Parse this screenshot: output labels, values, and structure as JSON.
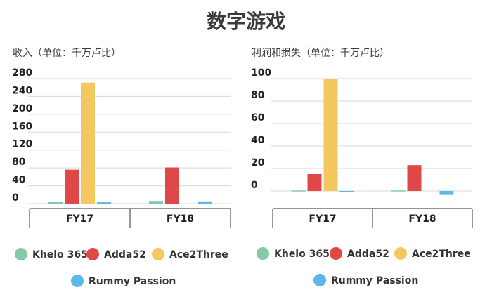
{
  "title": "数字游戏",
  "colors": {
    "Khelo 365": "#86c9a8",
    "Adda52": "#e04848",
    "Ace2Three": "#f5c760",
    "Rummy Passion": "#5bb8e8"
  },
  "chart_data": [
    {
      "type": "bar",
      "title": "收入（单位：千万卢比）",
      "categories": [
        "FY17",
        "FY18"
      ],
      "yticks": [
        0,
        40,
        80,
        120,
        160,
        200,
        240,
        280
      ],
      "ylim": [
        -6,
        280
      ],
      "grid": true,
      "legend": "bottom",
      "series": [
        {
          "name": "Khelo 365",
          "values": [
            4,
            6
          ]
        },
        {
          "name": "Adda52",
          "values": [
            76,
            81
          ]
        },
        {
          "name": "Ace2Three",
          "values": [
            271,
            0
          ]
        },
        {
          "name": "Rummy Passion",
          "values": [
            3,
            5
          ]
        }
      ]
    },
    {
      "type": "bar",
      "title": "利润和损失（单位：千万卢比）",
      "categories": [
        "FY17",
        "FY18"
      ],
      "yticks": [
        0,
        20,
        40,
        60,
        80,
        100
      ],
      "ylim": [
        -15,
        100
      ],
      "grid": true,
      "legend": "bottom",
      "series": [
        {
          "name": "Khelo 365",
          "values": [
            0.5,
            0.5
          ]
        },
        {
          "name": "Adda52",
          "values": [
            15,
            23
          ]
        },
        {
          "name": "Ace2Three",
          "values": [
            100,
            0
          ]
        },
        {
          "name": "Rummy Passion",
          "values": [
            -1,
            -3.5
          ]
        }
      ]
    }
  ]
}
